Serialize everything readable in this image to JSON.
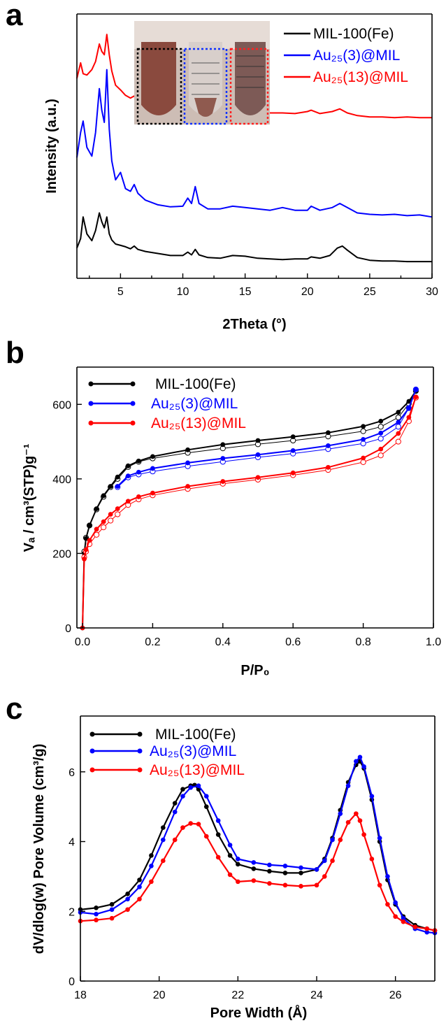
{
  "chart_data": [
    {
      "type": "line",
      "panel_label": "a",
      "xlabel": "2Theta (°)",
      "ylabel": "Intensity (a.u.)",
      "xlim": [
        1.5,
        30
      ],
      "xticks": [
        5,
        10,
        15,
        20,
        25,
        30
      ],
      "y_tick_labels_shown": false,
      "grid": false,
      "legend_position": "top-right",
      "inset": "photo of three vials (black, blue and red dotted frames) with reddish-brown powder",
      "series": [
        {
          "name": "MIL-100(Fe)",
          "color": "#000000",
          "x": [
            1.5,
            1.8,
            2.0,
            2.3,
            2.7,
            3.0,
            3.3,
            3.5,
            3.7,
            3.9,
            4.1,
            4.3,
            4.6,
            5.0,
            5.4,
            5.8,
            6.1,
            6.4,
            7.0,
            8.0,
            9.0,
            10.0,
            10.4,
            10.7,
            11.0,
            11.3,
            12.0,
            13.0,
            14.0,
            15.0,
            16.0,
            17.0,
            18.0,
            19.0,
            20.0,
            20.3,
            21.0,
            21.8,
            22.4,
            22.8,
            23.2,
            24.0,
            25.0,
            26.0,
            27.0,
            28.0,
            29.0,
            30.0
          ],
          "values": [
            2.4,
            3.8,
            7.0,
            4.5,
            3.5,
            5.0,
            7.6,
            6.3,
            5.4,
            7.0,
            4.5,
            3.6,
            3.0,
            2.8,
            2.6,
            2.3,
            2.7,
            2.2,
            1.9,
            1.6,
            1.3,
            1.3,
            1.8,
            1.4,
            2.2,
            1.4,
            1.0,
            0.9,
            1.3,
            1.2,
            0.9,
            0.8,
            0.7,
            0.8,
            0.8,
            1.1,
            0.9,
            1.3,
            2.4,
            2.7,
            2.1,
            1.0,
            0.6,
            0.5,
            0.5,
            0.4,
            0.4,
            0.4
          ]
        },
        {
          "name": "Au25(3)@MIL",
          "color": "#0000ff",
          "x": [
            1.5,
            1.8,
            2.0,
            2.3,
            2.7,
            3.0,
            3.3,
            3.5,
            3.7,
            3.9,
            4.1,
            4.3,
            4.6,
            5.0,
            5.4,
            5.8,
            6.1,
            6.4,
            7.0,
            8.0,
            9.0,
            10.0,
            10.4,
            10.7,
            11.0,
            11.3,
            12.0,
            13.0,
            14.0,
            15.0,
            16.0,
            17.0,
            18.0,
            19.0,
            20.0,
            20.3,
            21.0,
            22.0,
            22.6,
            23.2,
            24.0,
            25.0,
            26.0,
            27.0,
            28.0,
            29.0,
            30.0
          ],
          "values": [
            15.8,
            19.5,
            21.2,
            17.3,
            16.0,
            19.5,
            26.0,
            22.8,
            21.0,
            28.8,
            20.0,
            15.3,
            12.5,
            13.6,
            11.2,
            10.8,
            11.8,
            10.5,
            9.5,
            8.8,
            8.5,
            8.6,
            9.8,
            9.0,
            11.5,
            9.0,
            8.2,
            8.2,
            8.6,
            8.4,
            8.2,
            8.0,
            8.4,
            8.0,
            8.0,
            8.6,
            8.0,
            8.4,
            9.0,
            8.4,
            7.6,
            7.4,
            7.3,
            7.4,
            7.2,
            7.3,
            7.0
          ]
        },
        {
          "name": "Au25(13)@MIL",
          "color": "#ff0000",
          "x": [
            1.5,
            1.8,
            2.0,
            2.3,
            2.7,
            3.0,
            3.3,
            3.5,
            3.7,
            3.9,
            4.1,
            4.3,
            4.6,
            5.0,
            5.4,
            5.8,
            6.1,
            6.4,
            7.0,
            8.0,
            9.0,
            10.0,
            10.4,
            10.7,
            11.0,
            11.3,
            12.0,
            13.0,
            14.0,
            15.0,
            16.0,
            17.0,
            18.0,
            19.0,
            20.0,
            20.3,
            21.0,
            22.0,
            22.6,
            23.2,
            24.0,
            25.0,
            26.0,
            27.0,
            28.0,
            29.0,
            30.0
          ],
          "values": [
            27.5,
            29.8,
            28.2,
            28.0,
            28.8,
            30.0,
            32.6,
            31.5,
            31.0,
            34.0,
            31.0,
            28.6,
            26.5,
            25.8,
            25.0,
            24.6,
            24.9,
            24.3,
            23.6,
            23.2,
            23.0,
            23.0,
            24.0,
            23.4,
            24.6,
            23.2,
            22.8,
            22.6,
            22.7,
            22.6,
            22.5,
            22.4,
            22.4,
            22.3,
            22.6,
            22.8,
            22.3,
            22.6,
            23.0,
            22.4,
            22.0,
            21.8,
            21.8,
            21.7,
            21.8,
            21.7,
            21.7
          ]
        }
      ],
      "ylim": [
        0,
        36
      ]
    },
    {
      "type": "line",
      "panel_label": "b",
      "xlabel": "P/P₀",
      "ylabel": "Vₐ / cm³(STP)g⁻¹",
      "xlim": [
        0.0,
        1.0
      ],
      "ylim": [
        0,
        700
      ],
      "xticks": [
        0.0,
        0.2,
        0.4,
        0.6,
        0.8,
        1.0
      ],
      "xtick_labels": [
        "0.0",
        "0.2",
        "0.4",
        "0.6",
        "0.8",
        "1.0"
      ],
      "yticks": [
        0,
        200,
        400,
        600
      ],
      "grid": false,
      "legend_position": "top-left",
      "marker_note": "filled markers = adsorption, open markers = desorption",
      "series": [
        {
          "name": "MIL-100(Fe)",
          "color": "#000000",
          "adsorption_x": [
            0.0,
            0.005,
            0.01,
            0.02,
            0.04,
            0.06,
            0.08,
            0.1,
            0.13,
            0.16,
            0.2,
            0.3,
            0.4,
            0.5,
            0.6,
            0.7,
            0.8,
            0.85,
            0.9,
            0.93,
            0.95
          ],
          "adsorption_y": [
            0,
            200,
            240,
            275,
            320,
            355,
            380,
            405,
            435,
            448,
            460,
            478,
            492,
            503,
            513,
            524,
            541,
            555,
            579,
            608,
            636
          ],
          "desorption_x": [
            0.95,
            0.93,
            0.9,
            0.85,
            0.8,
            0.7,
            0.6,
            0.5,
            0.4,
            0.3,
            0.2,
            0.16,
            0.13,
            0.1,
            0.08,
            0.06,
            0.04,
            0.02,
            0.01,
            0.005
          ],
          "desorption_y": [
            636,
            602,
            565,
            540,
            528,
            514,
            503,
            493,
            482,
            470,
            455,
            446,
            432,
            400,
            378,
            352,
            318,
            275,
            242,
            205
          ]
        },
        {
          "name": "Au25(3)@MIL",
          "color": "#0000ff",
          "adsorption_x": [
            0.1,
            0.13,
            0.16,
            0.2,
            0.3,
            0.4,
            0.5,
            0.6,
            0.7,
            0.8,
            0.85,
            0.9,
            0.93,
            0.95
          ],
          "adsorption_y": [
            380,
            408,
            418,
            428,
            443,
            455,
            465,
            476,
            489,
            506,
            523,
            552,
            590,
            640
          ],
          "desorption_x": [
            0.95,
            0.93,
            0.9,
            0.85,
            0.8,
            0.7,
            0.6,
            0.5,
            0.4,
            0.3,
            0.2,
            0.16,
            0.13,
            0.1
          ],
          "desorption_y": [
            640,
            590,
            540,
            508,
            495,
            480,
            468,
            458,
            446,
            434,
            420,
            412,
            404,
            378
          ]
        },
        {
          "name": "Au25(13)@MIL",
          "color": "#ff0000",
          "adsorption_x": [
            0.0,
            0.005,
            0.01,
            0.02,
            0.04,
            0.06,
            0.08,
            0.1,
            0.13,
            0.16,
            0.2,
            0.3,
            0.4,
            0.5,
            0.6,
            0.7,
            0.8,
            0.85,
            0.9,
            0.93,
            0.95
          ],
          "adsorption_y": [
            0,
            185,
            210,
            235,
            265,
            285,
            305,
            320,
            340,
            352,
            362,
            380,
            393,
            404,
            416,
            431,
            456,
            480,
            522,
            565,
            620
          ],
          "desorption_x": [
            0.95,
            0.93,
            0.9,
            0.85,
            0.8,
            0.7,
            0.6,
            0.5,
            0.4,
            0.3,
            0.2,
            0.16,
            0.13,
            0.1,
            0.08,
            0.06,
            0.04,
            0.02,
            0.01,
            0.005
          ],
          "desorption_y": [
            618,
            555,
            500,
            463,
            445,
            424,
            410,
            398,
            387,
            373,
            356,
            345,
            330,
            305,
            288,
            270,
            250,
            225,
            205,
            190
          ]
        }
      ]
    },
    {
      "type": "line",
      "panel_label": "c",
      "xlabel": "Pore Width (Å)",
      "ylabel": "dV/dlog(w) Pore Volume (cm³/g)",
      "xlim": [
        18,
        27
      ],
      "ylim": [
        0,
        7.6
      ],
      "xticks": [
        18,
        20,
        22,
        24,
        26
      ],
      "yticks": [
        0,
        2,
        4,
        6
      ],
      "grid": false,
      "legend_position": "top-left",
      "series": [
        {
          "name": "MIL-100(Fe)",
          "color": "#000000",
          "x": [
            18.0,
            18.4,
            18.8,
            19.2,
            19.5,
            19.8,
            20.1,
            20.4,
            20.6,
            20.8,
            20.9,
            21.0,
            21.2,
            21.5,
            21.8,
            22.0,
            22.4,
            22.8,
            23.2,
            23.6,
            24.0,
            24.2,
            24.4,
            24.6,
            24.8,
            25.0,
            25.1,
            25.2,
            25.4,
            25.6,
            25.8,
            26.0,
            26.2,
            26.5,
            26.8,
            27.0
          ],
          "values": [
            2.05,
            2.1,
            2.2,
            2.5,
            2.9,
            3.6,
            4.4,
            5.1,
            5.5,
            5.6,
            5.62,
            5.5,
            5.0,
            4.2,
            3.6,
            3.35,
            3.22,
            3.15,
            3.1,
            3.1,
            3.2,
            3.5,
            4.1,
            4.9,
            5.7,
            6.2,
            6.3,
            6.1,
            5.2,
            4.0,
            2.9,
            2.2,
            1.85,
            1.6,
            1.5,
            1.45
          ]
        },
        {
          "name": "Au25(3)@MIL",
          "color": "#0000ff",
          "x": [
            18.0,
            18.4,
            18.8,
            19.2,
            19.5,
            19.8,
            20.1,
            20.4,
            20.6,
            20.8,
            21.0,
            21.2,
            21.5,
            21.8,
            22.0,
            22.4,
            22.8,
            23.2,
            23.6,
            24.0,
            24.2,
            24.4,
            24.6,
            24.8,
            25.0,
            25.1,
            25.2,
            25.4,
            25.6,
            25.8,
            26.0,
            26.2,
            26.5,
            26.8,
            27.0
          ],
          "values": [
            1.97,
            1.92,
            2.05,
            2.35,
            2.7,
            3.3,
            4.05,
            4.85,
            5.3,
            5.55,
            5.6,
            5.3,
            4.6,
            3.9,
            3.5,
            3.4,
            3.33,
            3.3,
            3.25,
            3.2,
            3.45,
            4.05,
            4.8,
            5.6,
            6.3,
            6.42,
            6.15,
            5.3,
            4.1,
            3.0,
            2.25,
            1.8,
            1.5,
            1.4,
            1.38
          ]
        },
        {
          "name": "Au25(13)@MIL",
          "color": "#ff0000",
          "x": [
            18.0,
            18.4,
            18.8,
            19.2,
            19.5,
            19.8,
            20.1,
            20.4,
            20.6,
            20.8,
            21.0,
            21.2,
            21.5,
            21.8,
            22.0,
            22.4,
            22.8,
            23.2,
            23.6,
            24.0,
            24.2,
            24.4,
            24.6,
            24.8,
            25.0,
            25.1,
            25.2,
            25.4,
            25.6,
            25.8,
            26.0,
            26.2,
            26.5,
            26.8,
            27.0
          ],
          "values": [
            1.72,
            1.75,
            1.8,
            2.05,
            2.35,
            2.85,
            3.45,
            4.05,
            4.4,
            4.52,
            4.5,
            4.15,
            3.55,
            3.05,
            2.85,
            2.88,
            2.8,
            2.75,
            2.72,
            2.75,
            3.0,
            3.45,
            4.05,
            4.55,
            4.8,
            4.6,
            4.2,
            3.5,
            2.75,
            2.2,
            1.85,
            1.7,
            1.55,
            1.5,
            1.45
          ]
        }
      ]
    }
  ],
  "legend_labels": {
    "mil": "MIL-100(Fe)",
    "au3": "Au₂₅(3)@MIL",
    "au13": "Au₂₅(13)@MIL"
  },
  "colors": {
    "mil": "#000000",
    "au3": "#0000ff",
    "au13": "#ff0000"
  }
}
